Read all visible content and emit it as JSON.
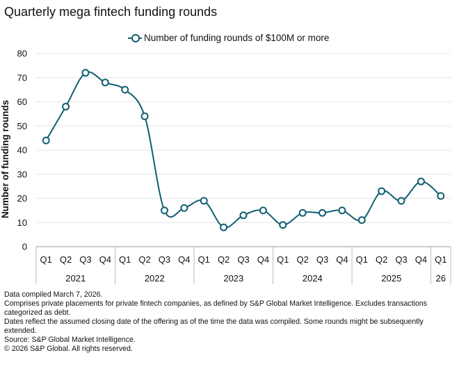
{
  "title": "Quarterly mega fintech funding rounds",
  "chart_data": {
    "type": "line",
    "title": "Quarterly mega fintech funding rounds",
    "ylabel": "Number of funding rounds",
    "xlabel": "",
    "ylim": [
      0,
      80
    ],
    "yticks": [
      0,
      10,
      20,
      30,
      40,
      50,
      60,
      70,
      80
    ],
    "grid": true,
    "legend_position": "top",
    "quarters": [
      "Q1",
      "Q2",
      "Q3",
      "Q4",
      "Q1",
      "Q2",
      "Q3",
      "Q4",
      "Q1",
      "Q2",
      "Q3",
      "Q4",
      "Q1",
      "Q2",
      "Q3",
      "Q4",
      "Q1",
      "Q2",
      "Q3",
      "Q4",
      "Q1"
    ],
    "years": [
      {
        "label": "2021",
        "count": 4
      },
      {
        "label": "2022",
        "count": 4
      },
      {
        "label": "2023",
        "count": 4
      },
      {
        "label": "2024",
        "count": 4
      },
      {
        "label": "2025",
        "count": 4
      },
      {
        "label": "26",
        "count": 1
      }
    ],
    "series": [
      {
        "name": "Number of funding rounds of $100M or more",
        "color": "#0f5e72",
        "values": [
          44,
          58,
          72,
          68,
          65,
          54,
          15,
          16,
          19,
          8,
          13,
          15,
          9,
          14,
          14,
          15,
          11,
          23,
          19,
          27,
          21
        ]
      }
    ]
  },
  "notes": [
    "Data compiled March 7, 2026.",
    "Comprises private placements for private fintech companies, as defined by S&P Global Market Intelligence. Excludes transactions categorized as debt.",
    "Dates reflect the assumed closing date of the offering as of the time the data was compiled. Some rounds might be subsequently extended.",
    "Source: S&P Global Market Intelligence.",
    "© 2026 S&P Global. All rights reserved."
  ]
}
